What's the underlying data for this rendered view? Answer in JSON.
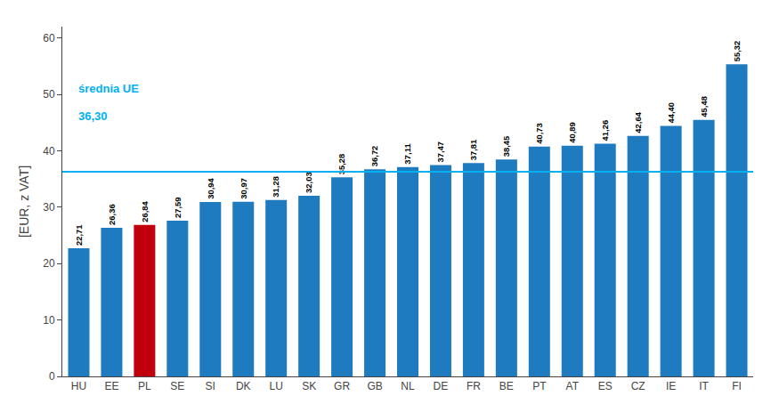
{
  "chart_data": {
    "type": "bar",
    "categories": [
      "HU",
      "EE",
      "PL",
      "SE",
      "SI",
      "DK",
      "LU",
      "SK",
      "GR",
      "GB",
      "NL",
      "DE",
      "FR",
      "BE",
      "PT",
      "AT",
      "ES",
      "CZ",
      "IE",
      "IT",
      "FI"
    ],
    "values": [
      22.71,
      26.36,
      26.84,
      27.59,
      30.94,
      30.97,
      31.28,
      32.03,
      35.28,
      36.72,
      37.11,
      37.47,
      37.81,
      38.45,
      40.73,
      40.89,
      41.26,
      42.64,
      44.4,
      45.48,
      55.32
    ],
    "value_labels": [
      "22,71",
      "26,36",
      "26,84",
      "27,59",
      "30,94",
      "30,97",
      "31,28",
      "32,03",
      "35,28",
      "36,72",
      "37,11",
      "37,47",
      "37,81",
      "38,45",
      "40,73",
      "40,89",
      "41,26",
      "42,64",
      "44,40",
      "45,48",
      "55,32"
    ],
    "data_labels": true,
    "colors": [
      "#1f7bbf",
      "#1f7bbf",
      "#c0000a",
      "#1f7bbf",
      "#1f7bbf",
      "#1f7bbf",
      "#1f7bbf",
      "#1f7bbf",
      "#1f7bbf",
      "#1f7bbf",
      "#1f7bbf",
      "#1f7bbf",
      "#1f7bbf",
      "#1f7bbf",
      "#1f7bbf",
      "#1f7bbf",
      "#1f7bbf",
      "#1f7bbf",
      "#1f7bbf",
      "#1f7bbf",
      "#1f7bbf"
    ],
    "ylabel": "[EUR, z VAT]",
    "ylim": [
      0,
      62
    ],
    "yticks": [
      0,
      10,
      20,
      30,
      40,
      50,
      60
    ],
    "grid": false,
    "average": {
      "value": 36.3,
      "labels": [
        "średnia UE",
        "36,30"
      ],
      "color": "#00b0f0"
    }
  }
}
